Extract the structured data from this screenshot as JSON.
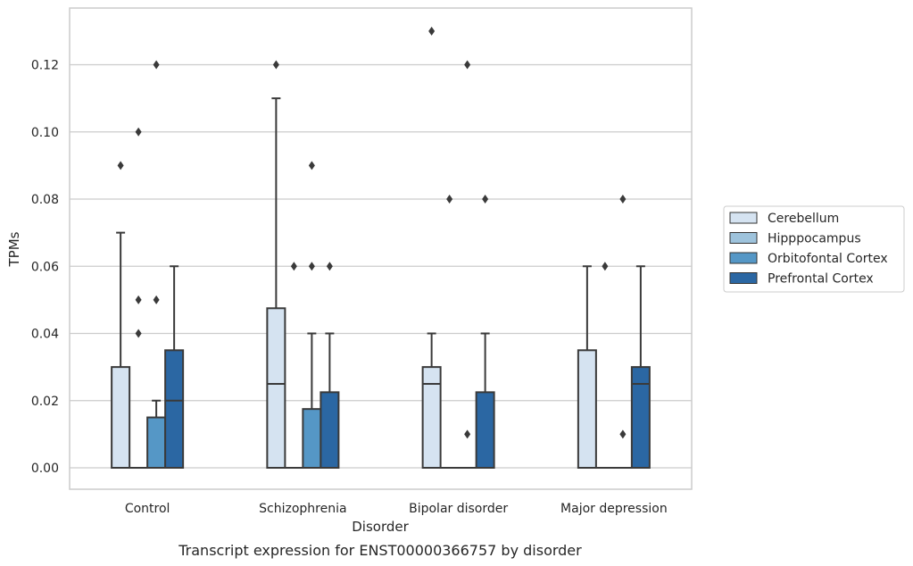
{
  "chart_data": {
    "type": "box",
    "caption": "Transcript expression for ENST00000366757 by disorder",
    "xlabel": "Disorder",
    "ylabel": "TPMs",
    "ylim": [
      -0.0065,
      0.1365
    ],
    "yticks": [
      0.0,
      0.02,
      0.04,
      0.06,
      0.08,
      0.1,
      0.12
    ],
    "ytick_labels": [
      "0.00",
      "0.02",
      "0.04",
      "0.06",
      "0.08",
      "0.10",
      "0.12"
    ],
    "grid": true,
    "legend_position": "right",
    "categories": [
      "Control",
      "Schizophrenia",
      "Bipolar disorder",
      "Major depression"
    ],
    "series": [
      {
        "name": "Cerebellum",
        "color": "#d5e3f1",
        "boxes": [
          {
            "min": 0.0,
            "q1": 0.0,
            "median": 0.0,
            "q3": 0.03,
            "max": 0.07,
            "outliers": [
              0.09
            ]
          },
          {
            "min": 0.0,
            "q1": 0.0,
            "median": 0.025,
            "q3": 0.0475,
            "max": 0.11,
            "outliers": [
              0.12
            ]
          },
          {
            "min": 0.0,
            "q1": 0.0,
            "median": 0.025,
            "q3": 0.03,
            "max": 0.04,
            "outliers": [
              0.13
            ]
          },
          {
            "min": 0.0,
            "q1": 0.0,
            "median": 0.0,
            "q3": 0.035,
            "max": 0.06,
            "outliers": []
          }
        ]
      },
      {
        "name": "Hipppocampus",
        "color": "#9ec3dc",
        "boxes": [
          {
            "min": 0.0,
            "q1": 0.0,
            "median": 0.0,
            "q3": 0.0,
            "max": 0.0,
            "outliers": [
              0.04,
              0.05,
              0.1
            ]
          },
          {
            "min": 0.0,
            "q1": 0.0,
            "median": 0.0,
            "q3": 0.0,
            "max": 0.0,
            "outliers": [
              0.06
            ]
          },
          {
            "min": 0.0,
            "q1": 0.0,
            "median": 0.0,
            "q3": 0.0,
            "max": 0.0,
            "outliers": [
              0.08
            ]
          },
          {
            "min": 0.0,
            "q1": 0.0,
            "median": 0.0,
            "q3": 0.0,
            "max": 0.0,
            "outliers": [
              0.06
            ]
          }
        ]
      },
      {
        "name": "Orbitofontal Cortex",
        "color": "#5597c6",
        "boxes": [
          {
            "min": 0.0,
            "q1": 0.0,
            "median": 0.0,
            "q3": 0.015,
            "max": 0.02,
            "outliers": [
              0.05,
              0.12
            ]
          },
          {
            "min": 0.0,
            "q1": 0.0,
            "median": 0.0,
            "q3": 0.0175,
            "max": 0.04,
            "outliers": [
              0.06,
              0.09
            ]
          },
          {
            "min": 0.0,
            "q1": 0.0,
            "median": 0.0,
            "q3": 0.0,
            "max": 0.0,
            "outliers": [
              0.01,
              0.12
            ]
          },
          {
            "min": 0.0,
            "q1": 0.0,
            "median": 0.0,
            "q3": 0.0,
            "max": 0.0,
            "outliers": [
              0.01,
              0.08
            ]
          }
        ]
      },
      {
        "name": "Prefrontal Cortex",
        "color": "#2b67a3",
        "boxes": [
          {
            "min": 0.0,
            "q1": 0.0,
            "median": 0.02,
            "q3": 0.035,
            "max": 0.06,
            "outliers": []
          },
          {
            "min": 0.0,
            "q1": 0.0,
            "median": 0.0,
            "q3": 0.0225,
            "max": 0.04,
            "outliers": [
              0.06
            ]
          },
          {
            "min": 0.0,
            "q1": 0.0,
            "median": 0.0,
            "q3": 0.0225,
            "max": 0.04,
            "outliers": [
              0.08
            ]
          },
          {
            "min": 0.0,
            "q1": 0.0,
            "median": 0.025,
            "q3": 0.03,
            "max": 0.06,
            "outliers": []
          }
        ]
      }
    ]
  }
}
